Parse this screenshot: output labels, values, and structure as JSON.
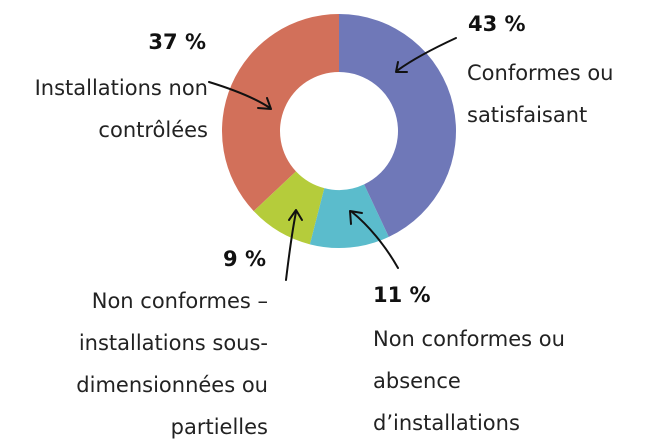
{
  "chart_data": {
    "type": "donut",
    "categories": [
      "Conformes ou satisfaisant",
      "Non conformes ou absence d’installations",
      "Non conformes – installations sous-dimensionnées ou partielles",
      "Installations non contrôlées"
    ],
    "values": [
      43,
      11,
      9,
      37
    ],
    "value_labels": [
      "43 %",
      "11 %",
      "9 %",
      "37 %"
    ],
    "colors": [
      "#6f78b8",
      "#5bbccc",
      "#b5cc3b",
      "#d2705a"
    ]
  }
}
